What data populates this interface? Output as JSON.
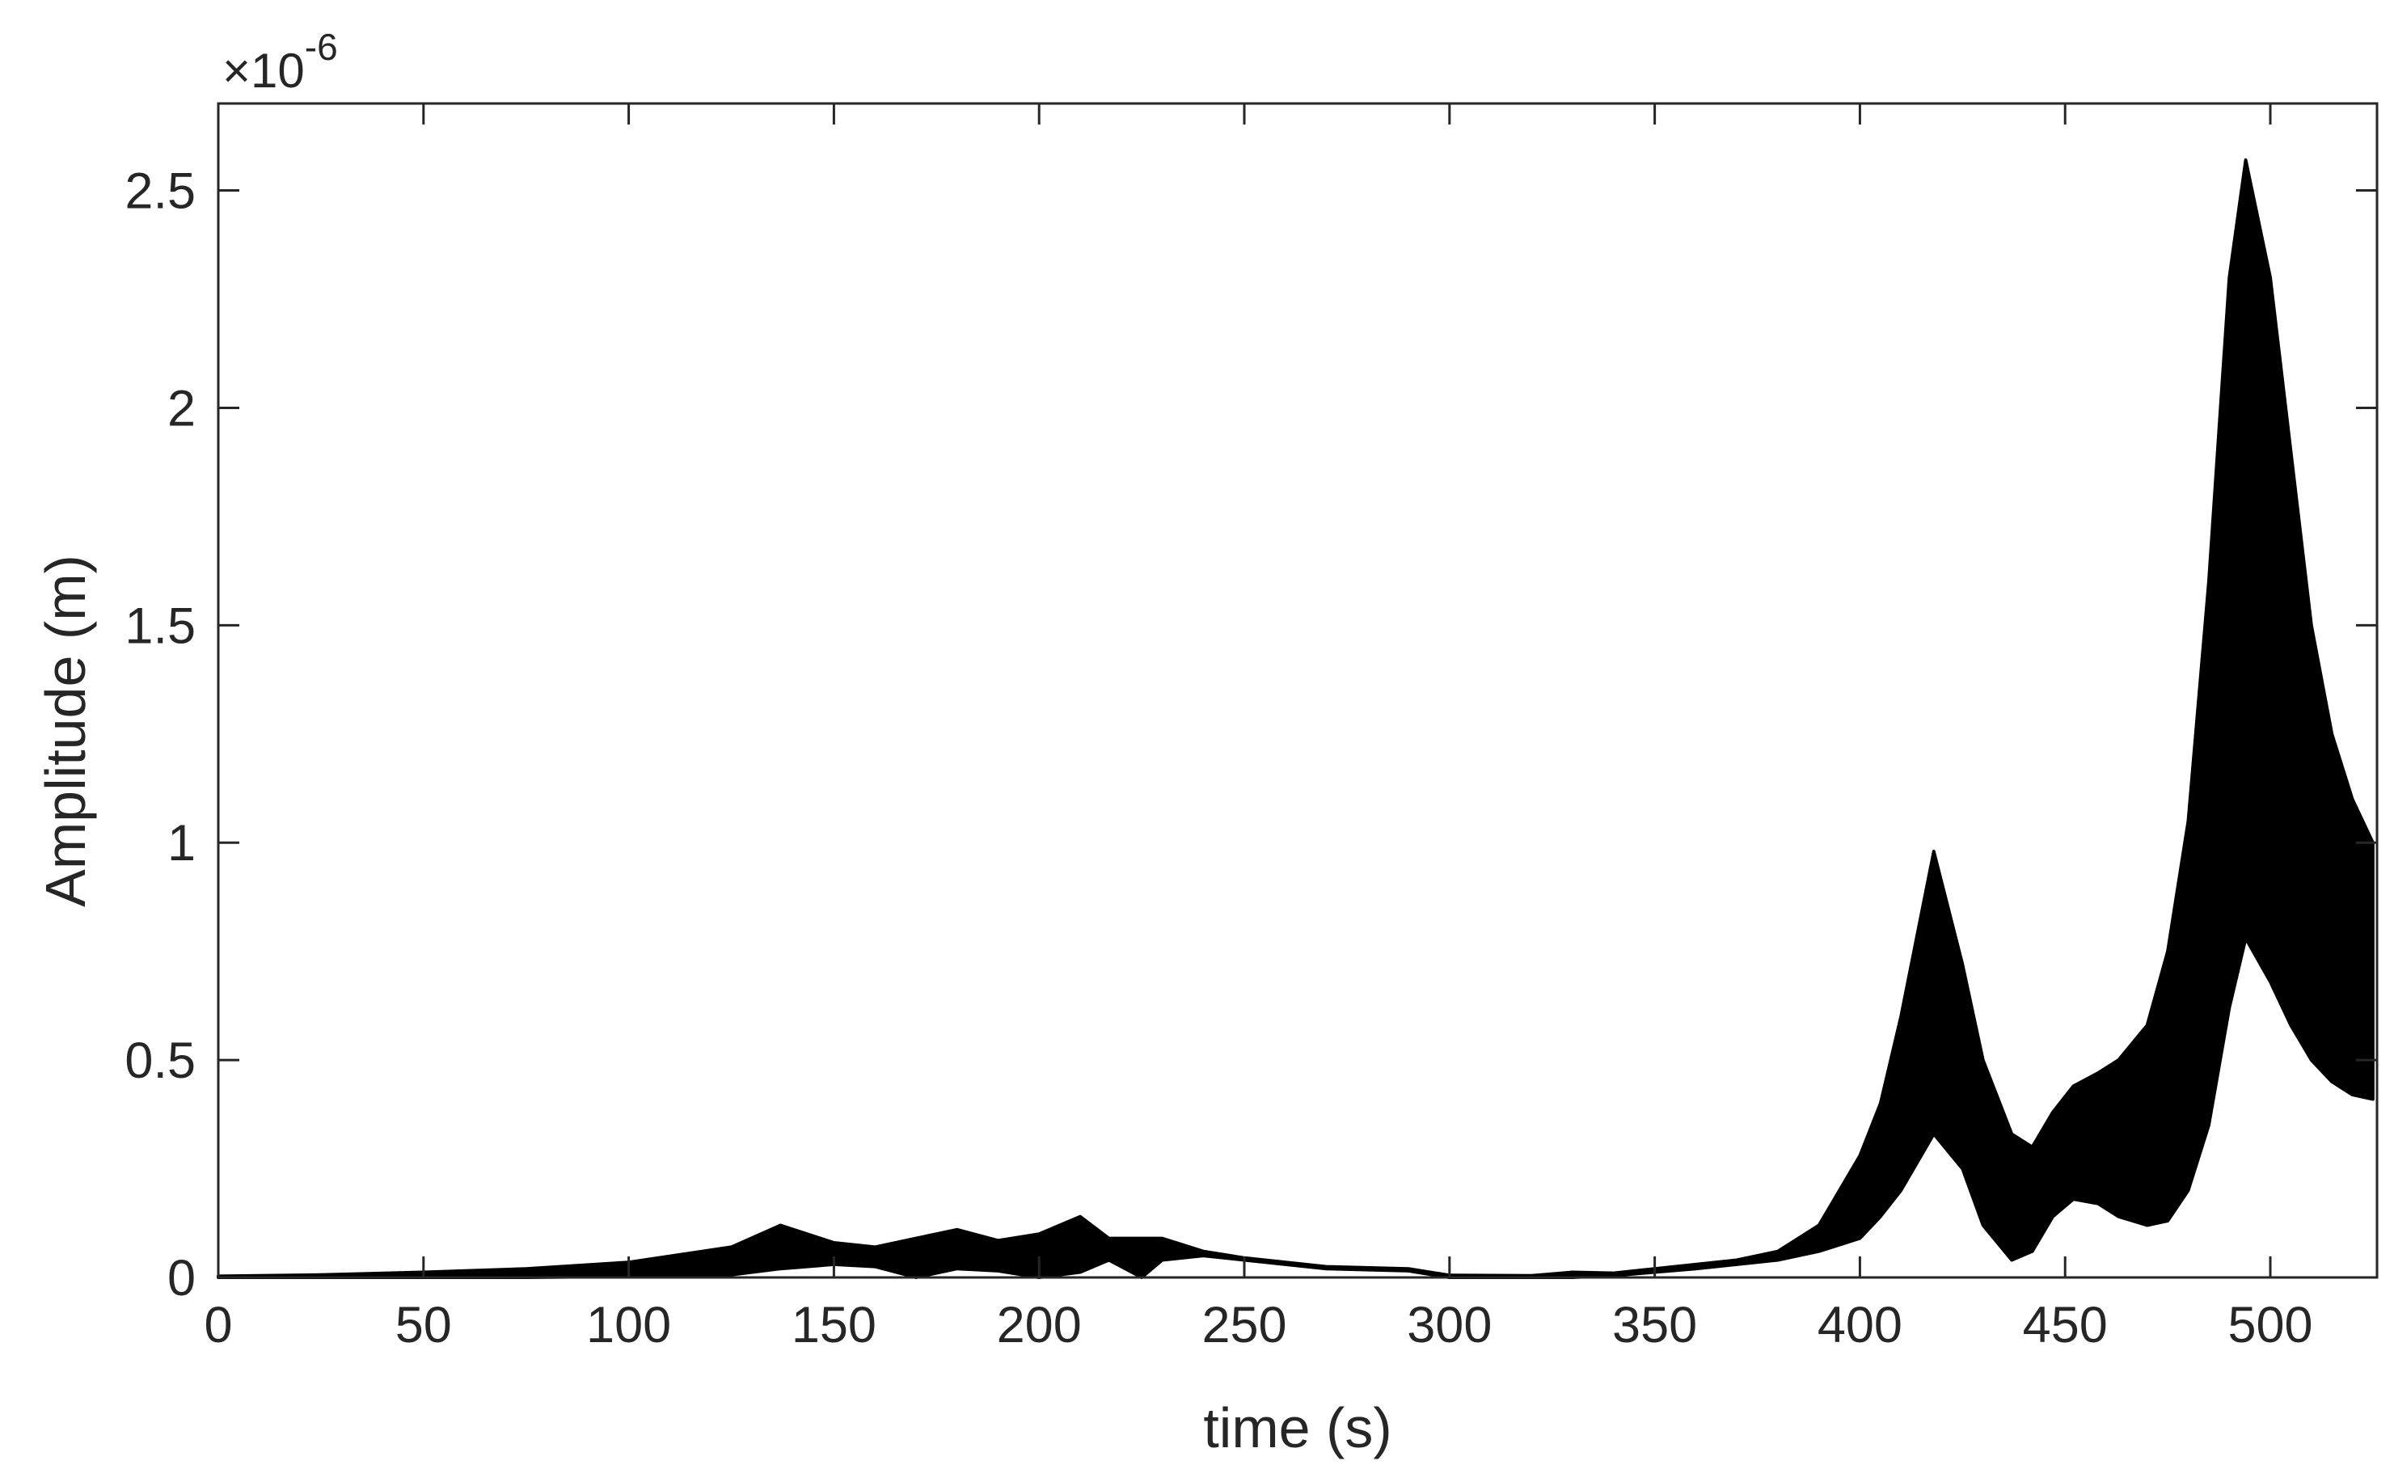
{
  "chart_data": {
    "type": "area",
    "title": "",
    "xlabel": "time (s)",
    "ylabel": "Amplitude (m)",
    "y_exponent": {
      "prefix": "×10",
      "power": "-6"
    },
    "xlim": [
      0,
      526
    ],
    "ylim": [
      0,
      2.7
    ],
    "xticks": [
      0,
      50,
      100,
      150,
      200,
      250,
      300,
      350,
      400,
      450,
      500
    ],
    "xtick_labels": [
      "0",
      "50",
      "100",
      "150",
      "200",
      "250",
      "300",
      "350",
      "400",
      "450",
      "500"
    ],
    "yticks": [
      0,
      0.5,
      1,
      1.5,
      2,
      2.5
    ],
    "ytick_labels": [
      "0",
      "0.5",
      "1",
      "1.5",
      "2",
      "2.5"
    ],
    "grid": false,
    "box": true,
    "series": [
      {
        "fill_color": "#000000",
        "x": [
          0,
          25,
          50,
          75,
          100,
          125,
          137,
          150,
          160,
          170,
          180,
          190,
          200,
          210,
          217,
          225,
          230,
          240,
          250,
          270,
          290,
          300,
          320,
          330,
          340,
          360,
          370,
          380,
          390,
          400,
          405,
          410,
          418,
          425,
          430,
          437,
          442,
          447,
          452,
          458,
          463,
          470,
          475,
          480,
          485,
          490,
          494,
          500,
          505,
          510,
          515,
          520,
          525
        ],
        "upper": [
          0.003,
          0.006,
          0.012,
          0.02,
          0.035,
          0.07,
          0.12,
          0.08,
          0.07,
          0.09,
          0.11,
          0.085,
          0.1,
          0.14,
          0.09,
          0.09,
          0.09,
          0.06,
          0.045,
          0.025,
          0.02,
          0.005,
          0.004,
          0.012,
          0.01,
          0.03,
          0.04,
          0.06,
          0.12,
          0.28,
          0.4,
          0.6,
          0.98,
          0.72,
          0.5,
          0.33,
          0.3,
          0.38,
          0.44,
          0.47,
          0.5,
          0.58,
          0.75,
          1.05,
          1.6,
          2.3,
          2.57,
          2.3,
          1.9,
          1.5,
          1.25,
          1.1,
          1.0
        ],
        "lower": [
          0,
          0,
          0,
          0,
          0.002,
          0.006,
          0.02,
          0.03,
          0.025,
          0.0,
          0.02,
          0.015,
          0.0,
          0.012,
          0.04,
          0.0,
          0.04,
          0.05,
          0.04,
          0.02,
          0.015,
          0.0,
          0.0,
          0.0,
          0.004,
          0.02,
          0.03,
          0.04,
          0.06,
          0.09,
          0.14,
          0.2,
          0.33,
          0.25,
          0.12,
          0.04,
          0.06,
          0.14,
          0.18,
          0.17,
          0.14,
          0.12,
          0.13,
          0.2,
          0.35,
          0.62,
          0.78,
          0.68,
          0.58,
          0.5,
          0.45,
          0.42,
          0.41
        ]
      }
    ]
  }
}
